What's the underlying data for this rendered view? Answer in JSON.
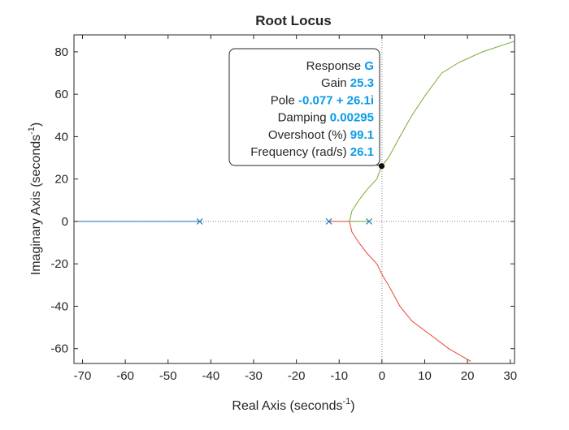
{
  "chart_data": {
    "type": "line",
    "title": "Root Locus",
    "xlabel": "Real Axis (seconds",
    "ylabel": "Imaginary Axis (seconds",
    "axis_unit_exponent": "-1",
    "xlim": [
      -72,
      31
    ],
    "ylim": [
      -67,
      88
    ],
    "xticks": [
      -70,
      -60,
      -50,
      -40,
      -30,
      -20,
      -10,
      0,
      10,
      20,
      30
    ],
    "yticks": [
      -60,
      -40,
      -20,
      0,
      20,
      40,
      60,
      80
    ],
    "grid": false,
    "colors": {
      "real_axis_branch": "#1f77b4",
      "upper_branch": "#77ac30",
      "lower_branch": "#e8443a",
      "pole_marker": "#1f77b4",
      "dotted_axes": "#7f7f7f"
    },
    "poles": [
      {
        "x": -42.6,
        "y": 0
      },
      {
        "x": -12.4,
        "y": 0
      },
      {
        "x": -3.0,
        "y": 0
      }
    ],
    "series": [
      {
        "values_xy": [
          [
            -42.6,
            0
          ],
          [
            -72,
            0
          ]
        ]
      },
      {
        "values_xy": [
          [
            -12.4,
            0
          ],
          [
            -7.6,
            0
          ]
        ]
      },
      {
        "values_xy": [
          [
            -3.0,
            0
          ],
          [
            -7.6,
            0
          ]
        ]
      },
      {
        "values_xy": [
          [
            -7.6,
            0
          ],
          [
            -7.0,
            5
          ],
          [
            -5.4,
            10
          ],
          [
            -3.5,
            15
          ],
          [
            -1.2,
            20
          ],
          [
            -0.077,
            26.1
          ],
          [
            1.5,
            30
          ],
          [
            4.2,
            40
          ],
          [
            7.0,
            50
          ],
          [
            10.3,
            60
          ],
          [
            14.0,
            70
          ],
          [
            18.0,
            75
          ],
          [
            23.5,
            80
          ],
          [
            31,
            85
          ]
        ]
      },
      {
        "values_xy": [
          [
            -7.6,
            0
          ],
          [
            -7.0,
            -5
          ],
          [
            -5.4,
            -10
          ],
          [
            -3.5,
            -15
          ],
          [
            -1.2,
            -20
          ],
          [
            0.0,
            -25
          ],
          [
            1.5,
            -30
          ],
          [
            4.2,
            -40
          ],
          [
            7.0,
            -47
          ],
          [
            11.0,
            -53
          ],
          [
            15.6,
            -60
          ],
          [
            20.8,
            -66
          ]
        ]
      }
    ],
    "datatip": {
      "point": {
        "x": -0.077,
        "y": 26.1
      },
      "rows": [
        {
          "label": "Response",
          "value": "G"
        },
        {
          "label": "Gain",
          "value": "25.3"
        },
        {
          "label": "Pole",
          "value": "-0.077 + 26.1i"
        },
        {
          "label": "Damping",
          "value": "0.00295"
        },
        {
          "label": "Overshoot (%)",
          "value": "99.1"
        },
        {
          "label": "Frequency (rad/s)",
          "value": "26.1"
        }
      ]
    }
  }
}
